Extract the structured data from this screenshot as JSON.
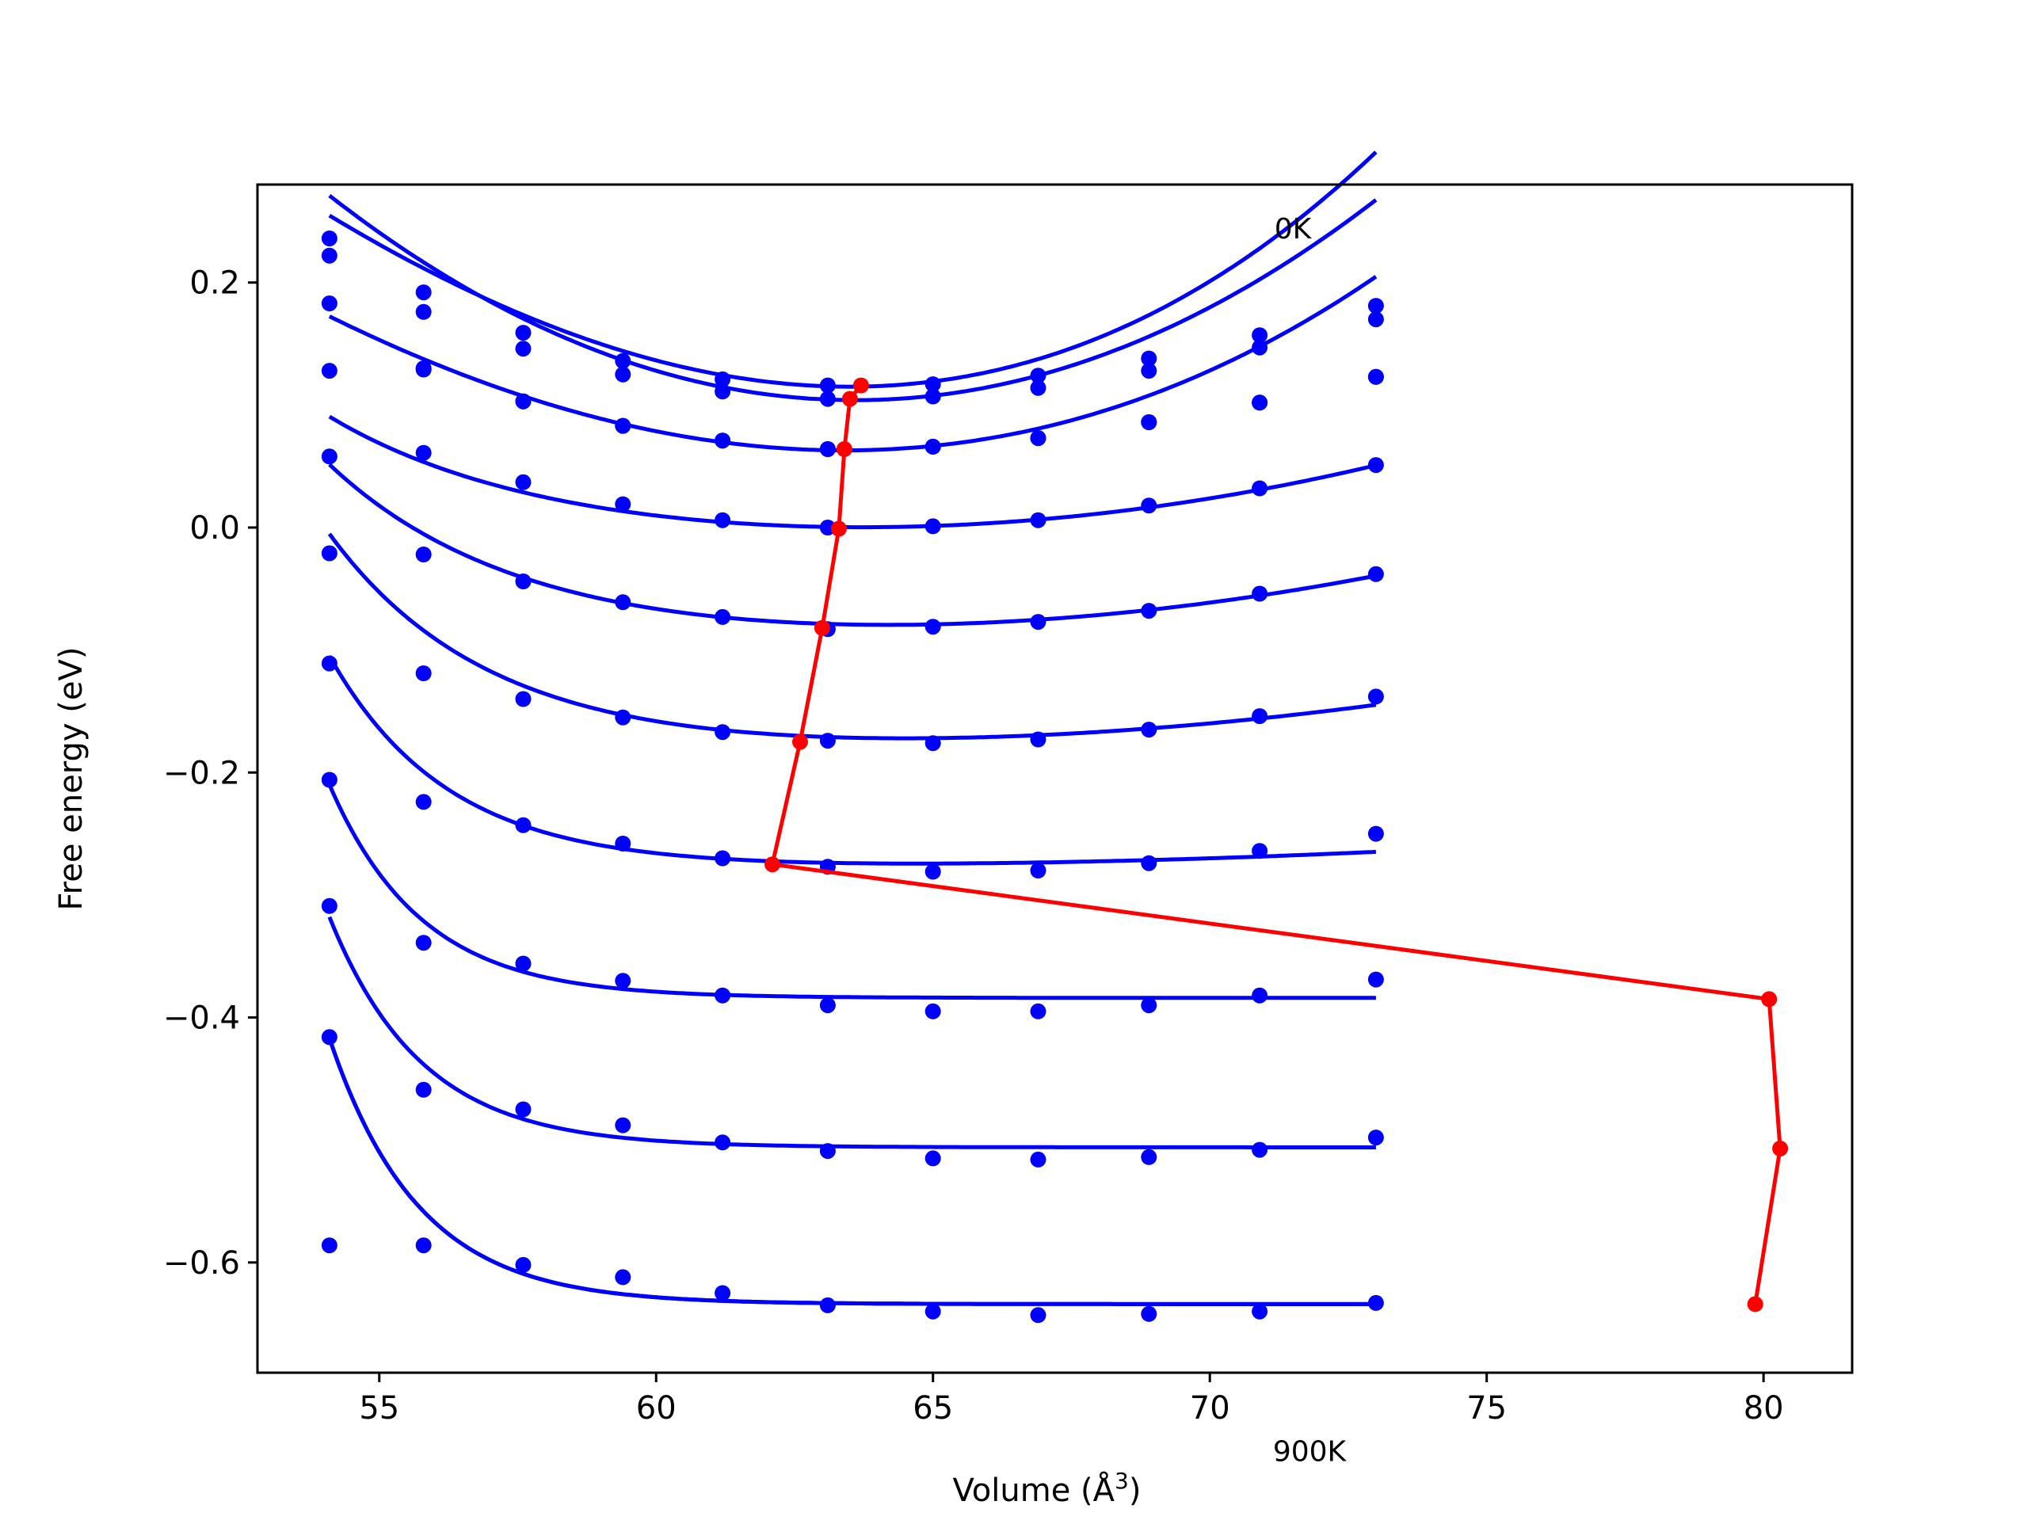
{
  "chart_data": {
    "type": "line",
    "xlabel": "Volume (Å³)",
    "xlabel_parts": {
      "prefix": "Volume (",
      "unit": "Å",
      "exponent": "3",
      "suffix": ")"
    },
    "ylabel": "Free energy (eV)",
    "xlim": [
      52.8,
      81.6
    ],
    "ylim": [
      -0.69,
      0.28
    ],
    "xticks": [
      55,
      60,
      65,
      70,
      75,
      80
    ],
    "xtick_labels": [
      "55",
      "60",
      "65",
      "70",
      "75",
      "80"
    ],
    "yticks": [
      0.2,
      0.0,
      -0.2,
      -0.4,
      -0.6
    ],
    "ytick_labels": [
      "0.2",
      "0.0",
      "−0.2",
      "−0.4",
      "−0.6"
    ],
    "grid": false,
    "annotations": [
      {
        "text": "0K",
        "x": 71.5,
        "y": 0.236
      },
      {
        "text": "900K",
        "x": 71.8,
        "y": -0.762
      }
    ],
    "volumes": [
      54.1,
      55.8,
      57.6,
      59.4,
      61.2,
      63.1,
      65.0,
      66.9,
      68.9,
      70.9,
      73.0
    ],
    "series": [
      {
        "points": [
          0.236,
          0.192,
          0.159,
          0.136,
          0.121,
          0.116,
          0.117,
          0.124,
          0.138,
          0.157,
          0.181
        ],
        "fit": {
          "x0": 63.5,
          "y0": 0.115,
          "a": 0.00185,
          "b": 2.86e-05,
          "c": 0.0,
          "k": 1.0
        }
      },
      {
        "points": [
          0.222,
          0.176,
          0.146,
          0.125,
          0.111,
          0.105,
          0.107,
          0.114,
          0.128,
          0.147,
          0.17
        ],
        "fit": {
          "x0": 63.6,
          "y0": 0.104,
          "a": 0.00185,
          "b": 0.0,
          "c": 0.0,
          "k": 1.0
        }
      },
      {
        "points": [
          0.183,
          0.13,
          0.103,
          0.083,
          0.071,
          0.064,
          0.066,
          0.073,
          0.086,
          0.102,
          0.123
        ],
        "fit": {
          "x0": 63.4,
          "y0": 0.063,
          "a": 0.0014,
          "b": 1.45e-05,
          "c": 0.0,
          "k": 1.0
        }
      },
      {
        "points": [
          0.128,
          0.129,
          0.103,
          0.083,
          0.071,
          0.064,
          0.066,
          0.073,
          0.086,
          0.102,
          0.123
        ],
        "fit": {
          "x0": 63.3,
          "y0": -0.001,
          "a": 0.00055,
          "b": 0.0,
          "c": 0.045,
          "k": 0.38
        }
      },
      {
        "points": [
          0.058,
          0.061,
          0.037,
          0.019,
          0.006,
          0.0,
          0.001,
          0.006,
          0.018,
          0.032,
          0.051
        ],
        "fit": {
          "x0": 63.0,
          "y0": -0.083,
          "a": 0.000435,
          "b": 0.0,
          "c": 0.1,
          "k": 0.35
        }
      },
      {
        "points": [
          -0.021,
          -0.022,
          -0.044,
          -0.061,
          -0.073,
          -0.083,
          -0.081,
          -0.077,
          -0.068,
          -0.054,
          -0.038
        ],
        "fit": {
          "x0": 62.6,
          "y0": -0.176,
          "a": 0.000288,
          "b": 0.0,
          "c": 0.15,
          "k": 0.38
        }
      },
      {
        "points": [
          -0.111,
          -0.119,
          -0.14,
          -0.155,
          -0.167,
          -0.174,
          -0.176,
          -0.173,
          -0.165,
          -0.154,
          -0.138
        ],
        "fit": {
          "x0": 62.1,
          "y0": -0.276,
          "a": 9.45e-05,
          "b": 0.0,
          "c": 0.165,
          "k": 0.48
        }
      },
      {
        "points": [
          -0.206,
          -0.224,
          -0.243,
          -0.258,
          -0.27,
          -0.277,
          -0.281,
          -0.28,
          -0.274,
          -0.264,
          -0.25
        ],
        "fit": {
          "x0": 63.0,
          "y0": -0.384,
          "a": 0.0,
          "b": 0.0,
          "c": 0.174,
          "k": 0.6
        }
      },
      {
        "points": [
          -0.309,
          -0.339,
          -0.356,
          -0.37,
          -0.382,
          -0.39,
          -0.395,
          -0.395,
          -0.39,
          -0.382,
          -0.369
        ],
        "fit": {
          "x0": 63.0,
          "y0": -0.506,
          "a": 0.0,
          "b": 0.0,
          "c": 0.188,
          "k": 0.6
        }
      },
      {
        "points": [
          -0.416,
          -0.459,
          -0.475,
          -0.488,
          -0.502,
          -0.509,
          -0.515,
          -0.516,
          -0.514,
          -0.508,
          -0.498
        ],
        "fit": {
          "x0": 63.0,
          "y0": -0.634,
          "a": 0.0,
          "b": 0.0,
          "c": 0.217,
          "k": 0.62
        }
      },
      {
        "points": [
          -0.586,
          -0.586,
          -0.602,
          -0.612,
          -0.625,
          -0.635,
          -0.64,
          -0.643,
          -0.642,
          -0.64,
          -0.633
        ],
        "fit": {
          "x0": 63.0,
          "y0": -0.634,
          "a": 0.0,
          "b": 0.0,
          "c": 0.217,
          "k": 0.62
        }
      }
    ],
    "minima_path": {
      "x": [
        63.7,
        63.5,
        63.4,
        63.3,
        63.0,
        62.6,
        62.1,
        80.1,
        80.3,
        79.85
      ],
      "y": [
        0.116,
        0.105,
        0.064,
        -0.001,
        -0.082,
        -0.175,
        -0.275,
        -0.385,
        -0.507,
        -0.634
      ]
    },
    "colors": {
      "fit": "#0000ff",
      "points": "#0000ff",
      "path": "#ff0000",
      "frame": "#000000"
    }
  }
}
